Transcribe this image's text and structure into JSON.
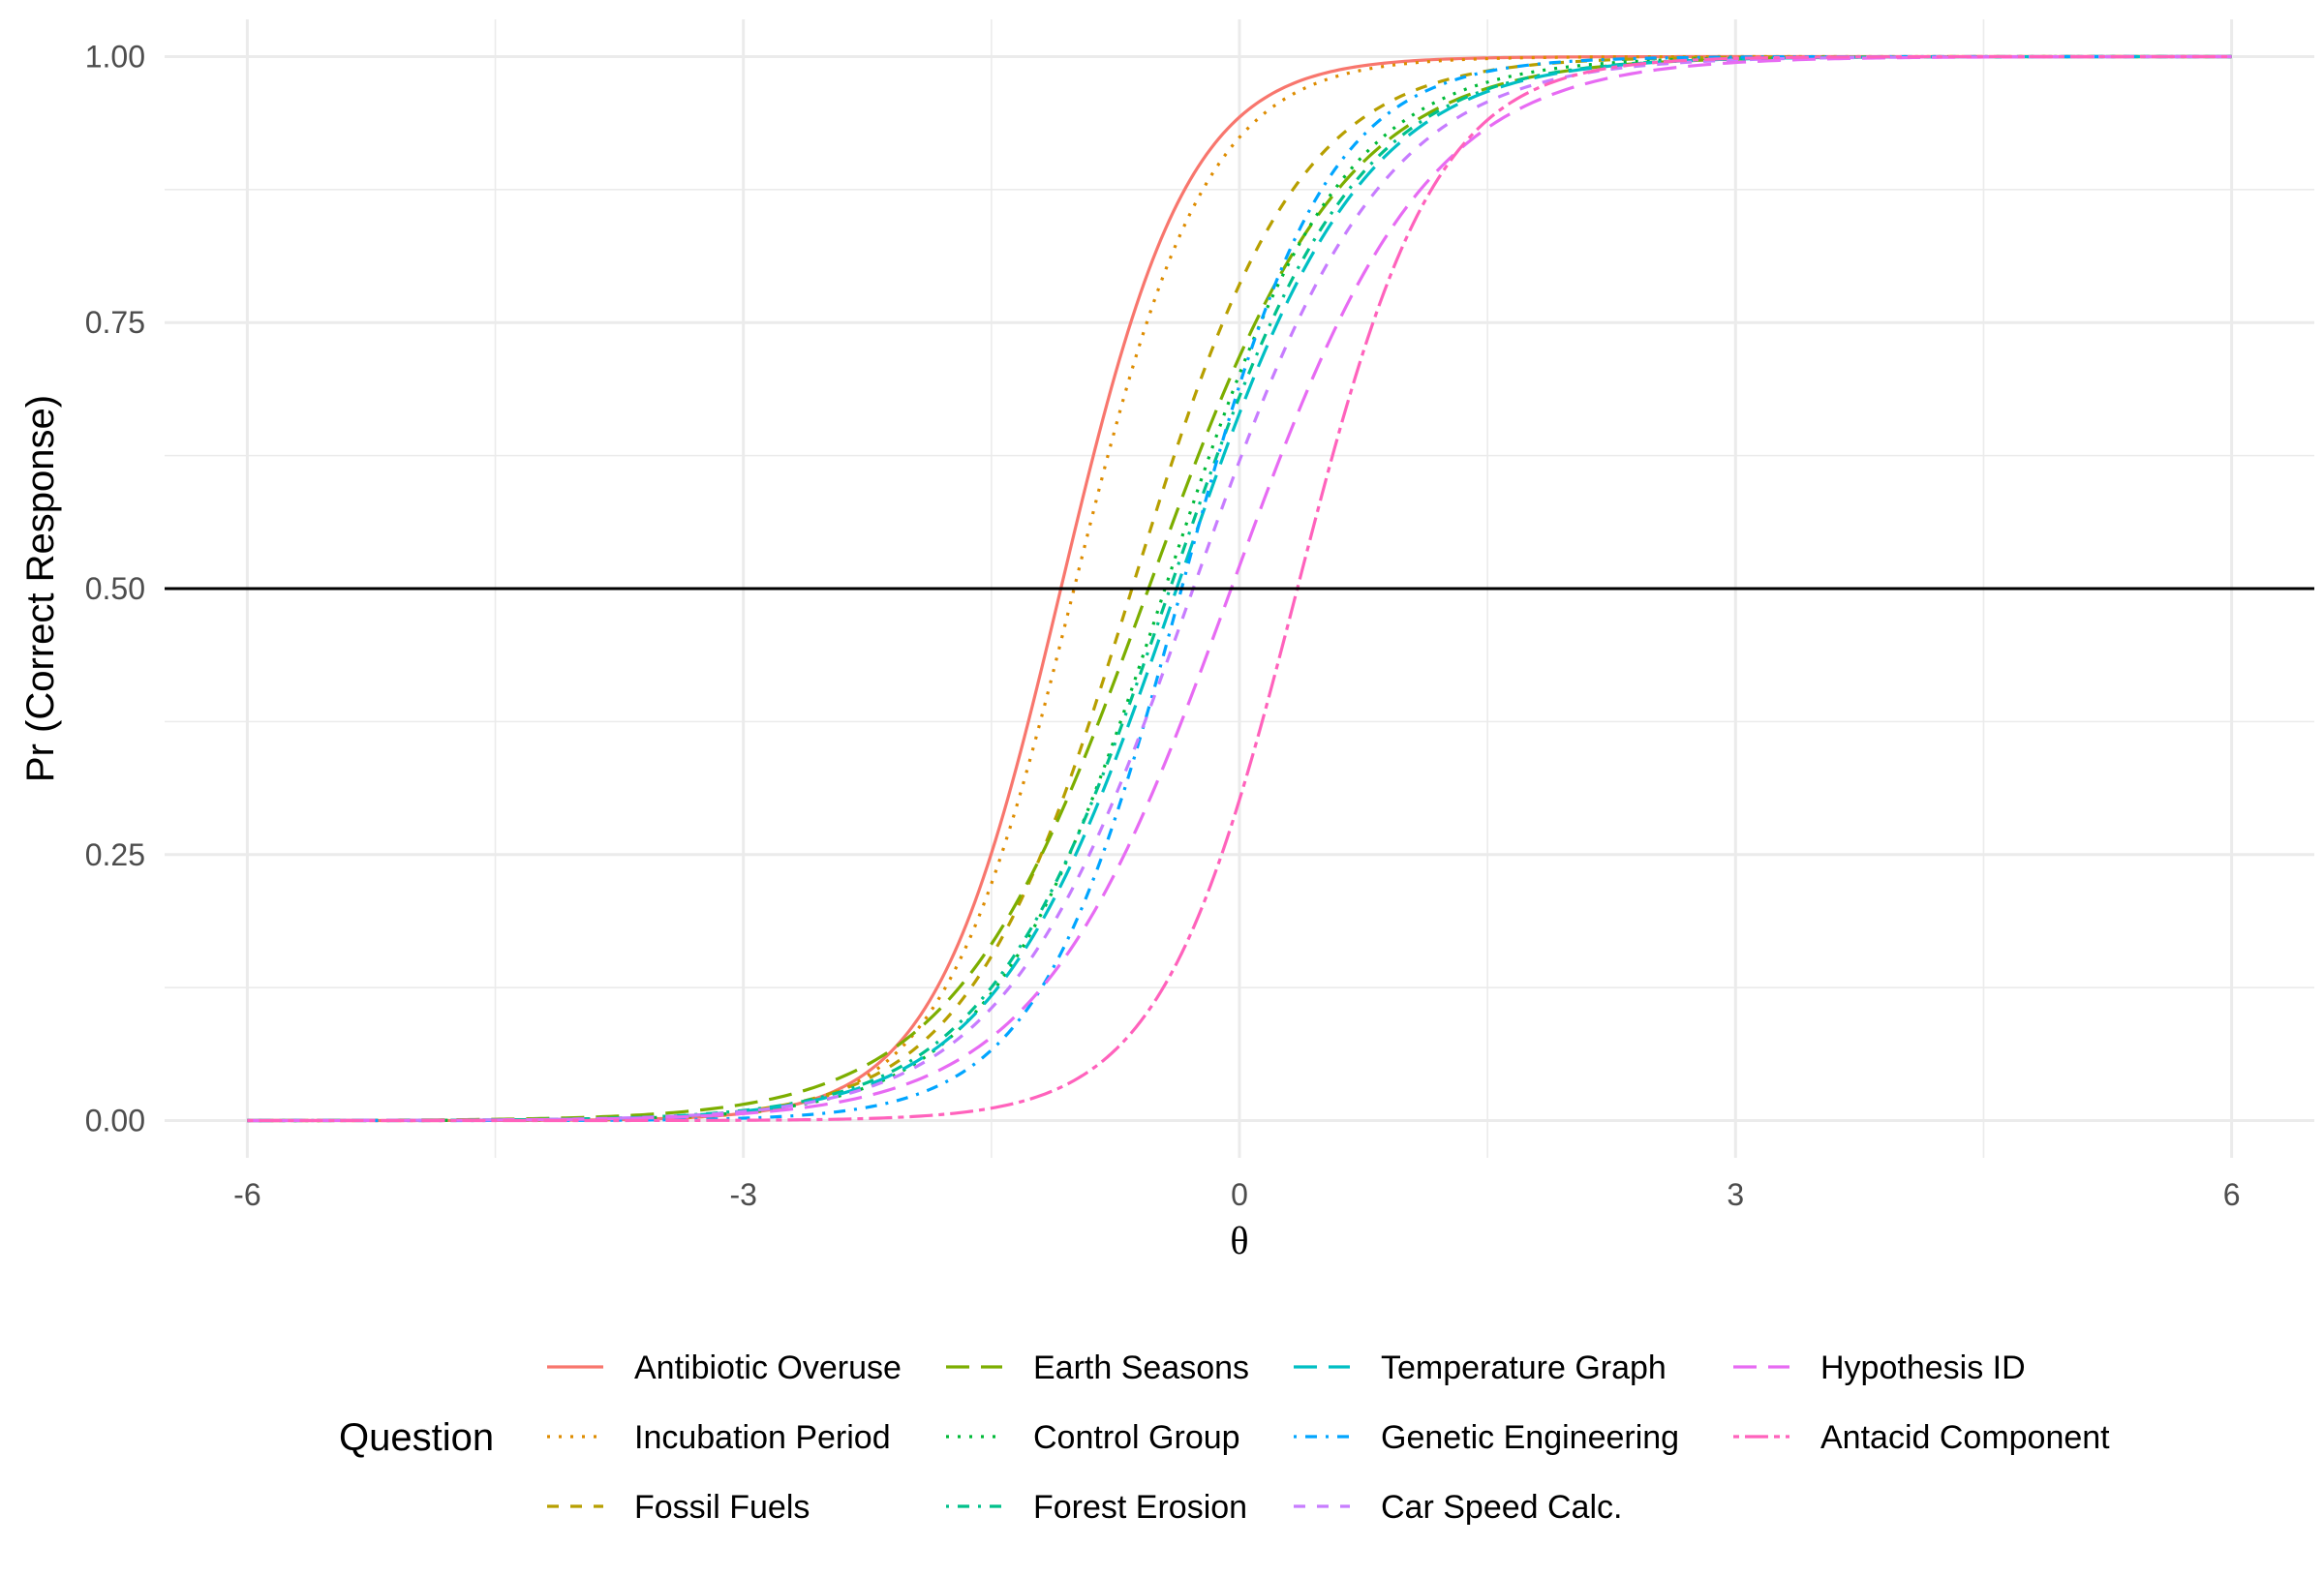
{
  "chart_data": {
    "type": "line",
    "xlabel": "θ",
    "ylabel": "Pr (Correct Response)",
    "xlim": [
      -6.5,
      6.5
    ],
    "ylim": [
      -0.035,
      1.035
    ],
    "x_ticks": [
      "-6",
      "-3",
      "0",
      "3",
      "6"
    ],
    "y_ticks": [
      "0.00",
      "0.25",
      "0.50",
      "0.75",
      "1.00"
    ],
    "grid": true,
    "reference_line": {
      "y": 0.5,
      "color": "#000000"
    },
    "legend": {
      "title": "Question",
      "position": "bottom"
    },
    "curve_function": "logistic: Pr = 1 / (1 + exp(-a*(θ - b)))",
    "theta_range": [
      -6,
      6
    ],
    "series": [
      {
        "name": "Antibiotic Overuse",
        "a": 2.6,
        "b": -1.08,
        "color": "#F8766D",
        "dash": "solid"
      },
      {
        "name": "Incubation Period",
        "a": 2.5,
        "b": -1.0,
        "color": "#DE8C00",
        "dash": "dotted"
      },
      {
        "name": "Fossil Fuels",
        "a": 2.0,
        "b": -0.65,
        "color": "#B79F00",
        "dash": "dashed"
      },
      {
        "name": "Earth Seasons",
        "a": 1.7,
        "b": -0.55,
        "color": "#7CAE00",
        "dash": "longdash"
      },
      {
        "name": "Control Group",
        "a": 1.9,
        "b": -0.45,
        "color": "#00BA38",
        "dash": "dotted"
      },
      {
        "name": "Forest Erosion",
        "a": 1.8,
        "b": -0.42,
        "color": "#00C08B",
        "dash": "dotdash"
      },
      {
        "name": "Temperature Graph",
        "a": 1.8,
        "b": -0.38,
        "color": "#00BFC4",
        "dash": "longdash"
      },
      {
        "name": "Genetic Engineering",
        "a": 2.3,
        "b": -0.35,
        "color": "#00A5FF",
        "dash": "dotdash"
      },
      {
        "name": "Car Speed Calc.",
        "a": 1.75,
        "b": -0.28,
        "color": "#C77CFF",
        "dash": "dashed"
      },
      {
        "name": "Hypothesis ID",
        "a": 1.7,
        "b": -0.05,
        "color": "#E76BF3",
        "dash": "longdash"
      },
      {
        "name": "Antacid Component",
        "a": 2.4,
        "b": 0.35,
        "color": "#FF62BC",
        "dash": "twodash"
      }
    ]
  }
}
